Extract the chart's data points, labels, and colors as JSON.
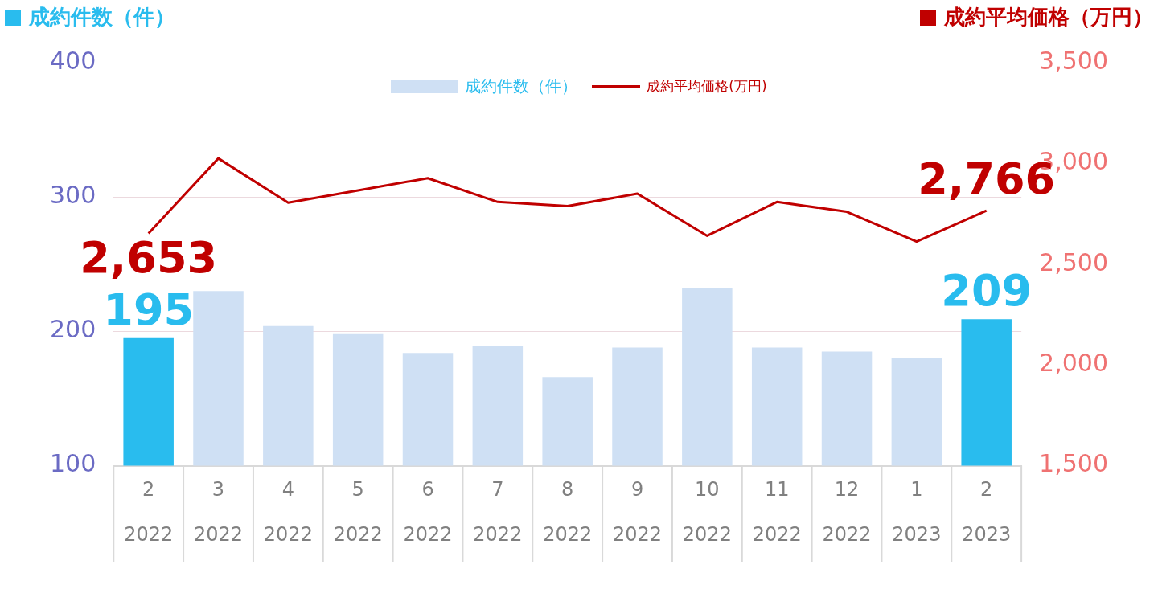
{
  "chart_data": {
    "type": "bar",
    "ylabel": "成約件数（件）",
    "y2label": "成約平均価格（万円）",
    "categories": [
      "2 2022",
      "3 2022",
      "4 2022",
      "5 2022",
      "6 2022",
      "7 2022",
      "8 2022",
      "9 2022",
      "10 2022",
      "11 2022",
      "12 2022",
      "1 2023",
      "2 2023"
    ],
    "series": [
      {
        "name": "成約件数（件）",
        "type": "bar",
        "colors": [
          "#29bcee",
          "#cfe0f4",
          "#cfe0f4",
          "#cfe0f4",
          "#cfe0f4",
          "#cfe0f4",
          "#cfe0f4",
          "#cfe0f4",
          "#cfe0f4",
          "#cfe0f4",
          "#cfe0f4",
          "#cfe0f4",
          "#29bcee"
        ],
        "color": "#cfe0f4",
        "values": [
          195,
          230,
          204,
          198,
          184,
          189,
          166,
          188,
          232,
          188,
          185,
          180,
          209
        ],
        "value_labels": [
          "195",
          null,
          null,
          null,
          null,
          null,
          null,
          null,
          null,
          null,
          null,
          null,
          "209"
        ]
      },
      {
        "name": "成約平均価格(万円)",
        "type": "line",
        "axis": "y2",
        "color": "#c00000",
        "values": [
          2653,
          3025,
          2805,
          2866,
          2927,
          2809,
          2788,
          2850,
          2641,
          2809,
          2760,
          2612,
          2766
        ],
        "value_labels": [
          "2,653",
          null,
          null,
          null,
          null,
          null,
          null,
          null,
          null,
          null,
          null,
          null,
          "2,766"
        ]
      }
    ],
    "ylim": [
      100,
      400
    ],
    "yticks": [
      100,
      200,
      300,
      400
    ],
    "y2lim": [
      1500,
      3500
    ],
    "y2ticks": [
      {
        "value": 1500,
        "label": "1,500"
      },
      {
        "value": 2000,
        "label": "2,000"
      },
      {
        "value": 2500,
        "label": "2,500"
      },
      {
        "value": 3000,
        "label": "3,000"
      },
      {
        "value": 3500,
        "label": "3,500"
      }
    ],
    "grid": "y",
    "legend": "top",
    "marker": "none",
    "line_style": "solid"
  }
}
